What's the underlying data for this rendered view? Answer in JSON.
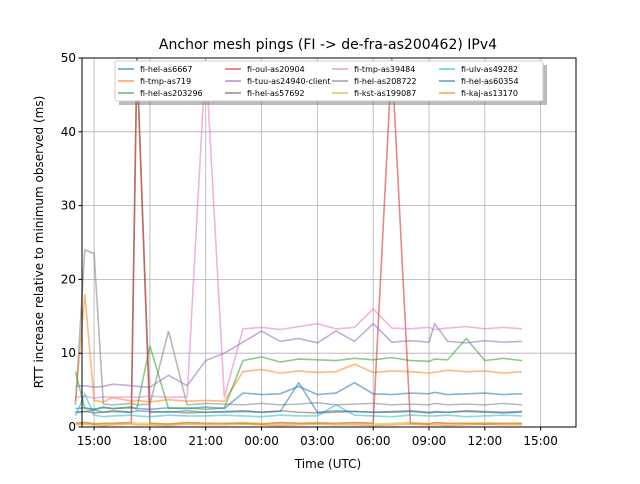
{
  "chart_data": {
    "type": "line",
    "title": "Anchor mesh pings (FI -> de-fra-as200462) IPv4",
    "xlabel": "Time (UTC)",
    "ylabel": "RTT increase relative to minimum observed (ms)",
    "xlim_hours_from_first_tick": [
      -0.65,
      25.9
    ],
    "ylim": [
      0,
      50
    ],
    "yticks": [
      0,
      10,
      20,
      30,
      40,
      50
    ],
    "xticks": [
      "15:00",
      "18:00",
      "21:00",
      "00:00",
      "03:00",
      "06:00",
      "09:00",
      "12:00",
      "15:00"
    ],
    "grid": true,
    "legend_placement": "top-center",
    "x_hours": [
      -1,
      -0.5,
      0,
      0.5,
      1,
      2,
      2.3,
      3,
      4,
      5,
      6,
      7,
      8,
      9,
      10,
      11,
      12,
      13,
      14,
      15,
      16,
      17,
      18,
      18.3,
      19,
      20,
      21,
      22,
      23
    ],
    "series": [
      {
        "name": "fi-hel-as6667",
        "color": "#1f77b4",
        "values": [
          2.5,
          2.6,
          2.4,
          2.7,
          2.5,
          2.6,
          2.5,
          2.4,
          2.6,
          2.5,
          2.7,
          2.5,
          4.6,
          4.4,
          4.5,
          5.5,
          4.4,
          4.6,
          6,
          4.5,
          4.4,
          4.6,
          4.5,
          4.7,
          4.4,
          4.5,
          4.6,
          4.4,
          4.5
        ]
      },
      {
        "name": "fi-tmp-as719",
        "color": "#ff7f0e",
        "values": [
          3.5,
          18,
          3.6,
          3.4,
          4,
          3.5,
          3.6,
          3.4,
          3.7,
          3.5,
          3.6,
          3.5,
          7.5,
          7.8,
          7.3,
          7.6,
          7.4,
          7.5,
          8.5,
          7.4,
          7.6,
          7.5,
          7.3,
          7.4,
          7.7,
          7.5,
          7.6,
          7.3,
          7.5
        ]
      },
      {
        "name": "fi-hel-as203296",
        "color": "#2ca02c",
        "values": [
          7.5,
          2.5,
          2.4,
          2.6,
          2.5,
          2.7,
          2.5,
          11,
          2.5,
          2.6,
          2.4,
          2.6,
          9,
          9.5,
          8.8,
          9.2,
          9.1,
          9,
          9.3,
          9.1,
          9.4,
          9,
          8.9,
          9.2,
          9.1,
          12,
          9,
          9.3,
          9
        ]
      },
      {
        "name": "fi-oul-as20904",
        "color": "#d62728",
        "values": [
          0.5,
          0.6,
          0.4,
          0.5,
          0.5,
          0.6,
          50,
          0.5,
          0.4,
          0.6,
          0.5,
          0.5,
          0.5,
          0.4,
          0.6,
          0.5,
          0.5,
          0.5,
          0.6,
          0.5,
          50,
          0.5,
          0.4,
          0.6,
          0.5,
          0.5,
          0.4,
          0.5,
          0.5
        ]
      },
      {
        "name": "fi-tuu-as24940-client",
        "color": "#9467bd",
        "values": [
          5.5,
          5.6,
          5.4,
          5.5,
          5.8,
          5.6,
          5.5,
          5.4,
          7,
          5.6,
          9,
          10,
          11.5,
          13,
          11.6,
          12,
          11.4,
          13,
          11.6,
          14,
          11.5,
          11.7,
          11.5,
          14,
          11.6,
          11.4,
          11.7,
          11.5,
          11.6
        ]
      },
      {
        "name": "fi-hel-as57692",
        "color": "#8c564b",
        "values": [
          2,
          2.1,
          1.9,
          2,
          2.2,
          2,
          50,
          2,
          2.1,
          1.9,
          2,
          2,
          2.1,
          2,
          2.2,
          2,
          1.9,
          2,
          2.1,
          2,
          2,
          2.1,
          1.9,
          2,
          2,
          2.1,
          2,
          1.9,
          2
        ]
      },
      {
        "name": "fi-tmp-as39484",
        "color": "#e377c2",
        "values": [
          4,
          4.2,
          3.9,
          4.1,
          4,
          4.1,
          4,
          4.2,
          4,
          4.1,
          50,
          4,
          13.3,
          13.5,
          13.2,
          13.6,
          14,
          13.3,
          13.5,
          16,
          13.4,
          13.3,
          13.5,
          13.2,
          13.4,
          13.6,
          13.3,
          13.5,
          13.3
        ]
      },
      {
        "name": "fi-hel-as208722",
        "color": "#7f7f7f",
        "values": [
          3,
          24,
          23.5,
          3.1,
          3,
          3.2,
          3,
          3.1,
          13,
          3,
          3.2,
          3.1,
          3,
          3.2,
          3,
          3.1,
          3.3,
          3,
          3.1,
          3.2,
          3,
          3.1,
          3,
          3.2,
          3,
          3.1,
          3,
          3.2,
          3
        ]
      },
      {
        "name": "fi-kst-as199087",
        "color": "#bcbd22",
        "values": [
          0.5,
          0.6,
          0.5,
          0.4,
          0.5,
          0.6,
          0.5,
          0.5,
          0.4,
          0.6,
          0.5,
          0.5,
          0.6,
          0.5,
          0.4,
          0.5,
          0.6,
          0.5,
          0.5,
          0.4,
          0.5,
          0.6,
          0.5,
          0.5,
          0.4,
          0.5,
          0.6,
          0.5,
          0.5
        ]
      },
      {
        "name": "fi-ulv-as49282",
        "color": "#17becf",
        "values": [
          1.5,
          4.5,
          1.6,
          1.4,
          1.5,
          1.6,
          1.5,
          1.4,
          1.6,
          1.5,
          1.5,
          1.6,
          1.5,
          1.4,
          1.6,
          1.5,
          1.5,
          3,
          1.6,
          1.5,
          1.4,
          1.6,
          1.5,
          1.5,
          1.6,
          1.4,
          1.5,
          1.6,
          1.5
        ]
      },
      {
        "name": "fi-hel-as60354",
        "color": "#1f77b4",
        "values": [
          2,
          2.1,
          2.3,
          2,
          2.1,
          2,
          2.2,
          2.1,
          2,
          2.2,
          2,
          2.1,
          2.2,
          2,
          2.1,
          6,
          2,
          2.2,
          2.1,
          2,
          2.1,
          2.2,
          2,
          2.1,
          2,
          2.2,
          2.1,
          2,
          2.1
        ]
      },
      {
        "name": "fi-kaj-as13170",
        "color": "#ff7f0e",
        "values": [
          0.3,
          0.4,
          0.3,
          0.2,
          0.3,
          0.4,
          0.3,
          0.3,
          0.2,
          0.4,
          0.3,
          0.3,
          0.4,
          0.3,
          0.2,
          0.3,
          0.4,
          0.3,
          0.3,
          0.2,
          0.3,
          0.4,
          0.3,
          0.3,
          0.2,
          0.3,
          0.4,
          0.3,
          0.3
        ]
      }
    ]
  }
}
